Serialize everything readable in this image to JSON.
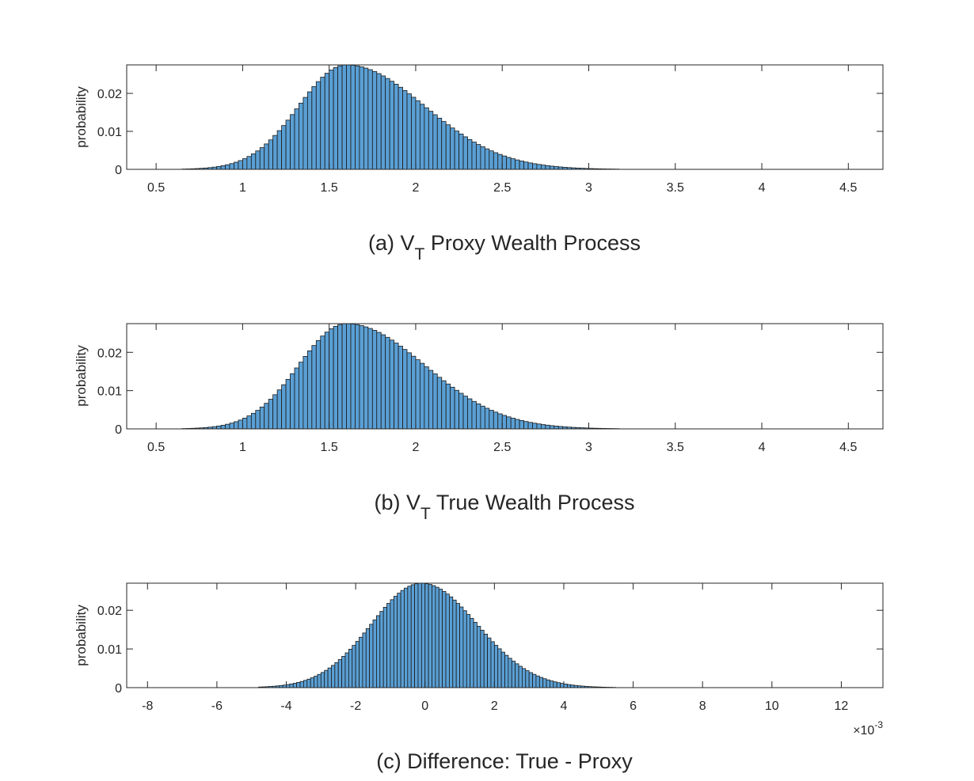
{
  "chart_data": [
    {
      "type": "histogram",
      "caption": {
        "prefix": "(a) V",
        "sub": "T",
        "suffix": " Proxy Wealth Process"
      },
      "ylabel": "probability",
      "xlim": [
        0.33,
        4.7
      ],
      "ylim": [
        0,
        0.0275
      ],
      "xticks": [
        0.5,
        1,
        1.5,
        2,
        2.5,
        3,
        3.5,
        4,
        4.5
      ],
      "xtick_labels": [
        "0.5",
        "1",
        "1.5",
        "2",
        "2.5",
        "3",
        "3.5",
        "4",
        "4.5"
      ],
      "yticks": [
        0,
        0.01,
        0.02
      ],
      "ytick_labels": [
        "0",
        "0.01",
        "0.02"
      ],
      "x_multiplier_label": "",
      "grid": false,
      "bins": {
        "start": 0.65,
        "width": 0.025,
        "count": 114,
        "mode": 1.6,
        "sd_left": 0.275,
        "sd_right": 0.45,
        "peak": 0.0275
      }
    },
    {
      "type": "histogram",
      "caption": {
        "prefix": "(b) V",
        "sub": "T",
        "suffix": " True Wealth Process"
      },
      "ylabel": "probability",
      "xlim": [
        0.33,
        4.7
      ],
      "ylim": [
        0,
        0.0275
      ],
      "xticks": [
        0.5,
        1,
        1.5,
        2,
        2.5,
        3,
        3.5,
        4,
        4.5
      ],
      "xtick_labels": [
        "0.5",
        "1",
        "1.5",
        "2",
        "2.5",
        "3",
        "3.5",
        "4",
        "4.5"
      ],
      "yticks": [
        0,
        0.01,
        0.02
      ],
      "ytick_labels": [
        "0",
        "0.01",
        "0.02"
      ],
      "x_multiplier_label": "",
      "grid": false,
      "bins": {
        "start": 0.65,
        "width": 0.025,
        "count": 114,
        "mode": 1.6,
        "sd_left": 0.275,
        "sd_right": 0.45,
        "peak": 0.0275
      }
    },
    {
      "type": "histogram",
      "caption": {
        "prefix": "(c) Difference: True - Proxy",
        "sub": "",
        "suffix": ""
      },
      "ylabel": "probability",
      "xlim": [
        -8.6,
        13.2
      ],
      "ylim": [
        0,
        0.027
      ],
      "xticks": [
        -8,
        -6,
        -4,
        -2,
        0,
        2,
        4,
        6,
        8,
        10,
        12
      ],
      "xtick_labels": [
        "-8",
        "-6",
        "-4",
        "-2",
        "0",
        "2",
        "4",
        "6",
        "8",
        "10",
        "12"
      ],
      "yticks": [
        0,
        0.01,
        0.02
      ],
      "ytick_labels": [
        "0",
        "0.01",
        "0.02"
      ],
      "x_multiplier_label": "×10",
      "x_multiplier_exp": "-3",
      "grid": false,
      "bins": {
        "start": -4.8,
        "width": 0.1,
        "count": 112,
        "mode": -0.1,
        "sd_left": 1.45,
        "sd_right": 1.6,
        "peak": 0.027
      }
    }
  ]
}
